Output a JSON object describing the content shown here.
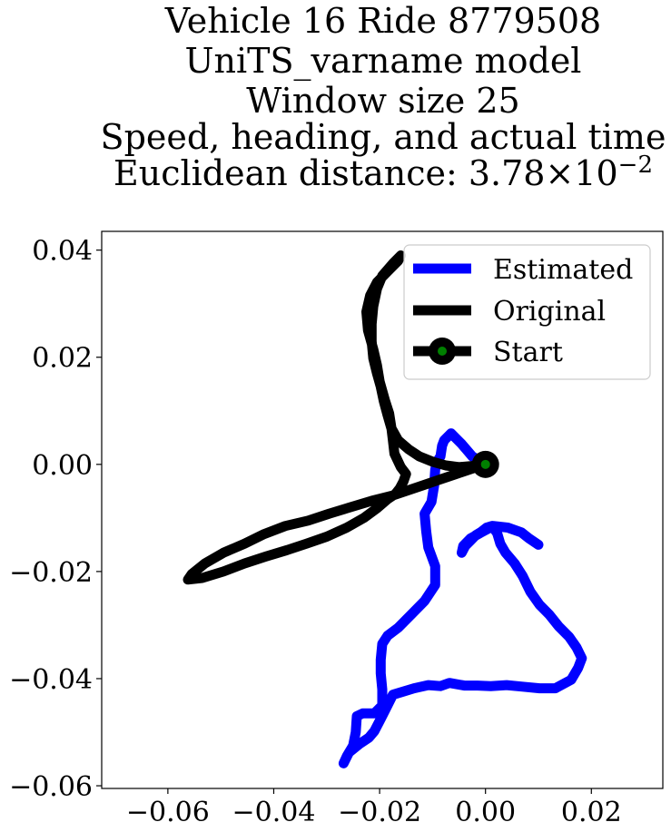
{
  "chart_data": {
    "type": "line",
    "title_lines": [
      "Vehicle 16 Ride 8779508",
      "UniTS_varname model",
      "Window size 25",
      "Speed, heading, and actual time"
    ],
    "title_distance_prefix": "Euclidean distance: ",
    "title_distance_mantissa": "3.78",
    "title_distance_times": "×",
    "title_distance_base": "10",
    "title_distance_exponent": "−2",
    "xlim": [
      -0.0725,
      0.0335
    ],
    "ylim": [
      -0.0605,
      0.0435
    ],
    "xticks": [
      -0.06,
      -0.04,
      -0.02,
      0.0,
      0.02
    ],
    "xtick_labels": [
      "−0.06",
      "−0.04",
      "−0.02",
      "0.00",
      "0.02"
    ],
    "yticks": [
      0.04,
      0.02,
      0.0,
      -0.02,
      -0.04,
      -0.06
    ],
    "ytick_labels": [
      "0.04",
      "0.02",
      "0.00",
      "−0.02",
      "−0.04",
      "−0.06"
    ],
    "legend_position": "upper-right",
    "series": [
      {
        "name": "Estimated",
        "color": "#0000ff",
        "points": [
          [
            0.0,
            0.0
          ],
          [
            -0.0025,
            0.0015
          ],
          [
            -0.0045,
            0.0038
          ],
          [
            -0.0065,
            0.0058
          ],
          [
            -0.0078,
            0.0045
          ],
          [
            -0.0082,
            0.0035
          ],
          [
            -0.0085,
            0.0015
          ],
          [
            -0.0092,
            0.0005
          ],
          [
            -0.0095,
            -0.001
          ],
          [
            -0.0097,
            -0.004
          ],
          [
            -0.0102,
            -0.007
          ],
          [
            -0.0115,
            -0.0092
          ],
          [
            -0.0112,
            -0.0125
          ],
          [
            -0.0108,
            -0.0155
          ],
          [
            -0.0095,
            -0.019
          ],
          [
            -0.0095,
            -0.0225
          ],
          [
            -0.0115,
            -0.0255
          ],
          [
            -0.014,
            -0.028
          ],
          [
            -0.0165,
            -0.0305
          ],
          [
            -0.0185,
            -0.032
          ],
          [
            -0.0195,
            -0.0335
          ],
          [
            -0.0198,
            -0.0365
          ],
          [
            -0.0198,
            -0.039
          ],
          [
            -0.0195,
            -0.042
          ],
          [
            -0.0195,
            -0.045
          ],
          [
            -0.021,
            -0.0465
          ],
          [
            -0.0232,
            -0.0465
          ],
          [
            -0.0243,
            -0.047
          ],
          [
            -0.0245,
            -0.05
          ],
          [
            -0.025,
            -0.0525
          ],
          [
            -0.0262,
            -0.0545
          ],
          [
            -0.0268,
            -0.0558
          ],
          [
            -0.0258,
            -0.0538
          ],
          [
            -0.0238,
            -0.0522
          ],
          [
            -0.022,
            -0.051
          ],
          [
            -0.021,
            -0.0498
          ],
          [
            -0.0198,
            -0.0475
          ],
          [
            -0.0185,
            -0.045
          ],
          [
            -0.0175,
            -0.043
          ],
          [
            -0.0158,
            -0.0425
          ],
          [
            -0.0135,
            -0.0418
          ],
          [
            -0.0108,
            -0.0412
          ],
          [
            -0.0085,
            -0.0414
          ],
          [
            -0.0068,
            -0.0408
          ],
          [
            -0.004,
            -0.0413
          ],
          [
            -0.0015,
            -0.0413
          ],
          [
            0.001,
            -0.0414
          ],
          [
            0.004,
            -0.0412
          ],
          [
            0.007,
            -0.0415
          ],
          [
            0.0102,
            -0.0418
          ],
          [
            0.0132,
            -0.0418
          ],
          [
            0.0162,
            -0.0402
          ],
          [
            0.0175,
            -0.038
          ],
          [
            0.0182,
            -0.0362
          ],
          [
            0.0172,
            -0.0342
          ],
          [
            0.0158,
            -0.0322
          ],
          [
            0.0138,
            -0.0302
          ],
          [
            0.012,
            -0.028
          ],
          [
            0.0102,
            -0.0262
          ],
          [
            0.0085,
            -0.0238
          ],
          [
            0.007,
            -0.0208
          ],
          [
            0.0055,
            -0.0185
          ],
          [
            0.0038,
            -0.0165
          ],
          [
            0.0028,
            -0.0148
          ],
          [
            0.0022,
            -0.0128
          ],
          [
            0.0012,
            -0.0115
          ],
          [
            0.0002,
            -0.0118
          ],
          [
            -0.0008,
            -0.0126
          ],
          [
            -0.0018,
            -0.0132
          ],
          [
            -0.0028,
            -0.0142
          ],
          [
            -0.0038,
            -0.0152
          ],
          [
            -0.0045,
            -0.0165
          ],
          [
            -0.0042,
            -0.0152
          ],
          [
            -0.0028,
            -0.0138
          ],
          [
            -0.001,
            -0.0128
          ],
          [
            0.0015,
            -0.0115
          ],
          [
            0.0042,
            -0.0118
          ],
          [
            0.0068,
            -0.0127
          ],
          [
            0.0082,
            -0.0138
          ],
          [
            0.01,
            -0.015
          ]
        ]
      },
      {
        "name": "Original",
        "color": "#000000",
        "points": [
          [
            0.0,
            0.0
          ],
          [
            -0.0025,
            -0.0008
          ],
          [
            -0.0055,
            -0.0018
          ],
          [
            -0.0085,
            -0.0028
          ],
          [
            -0.0115,
            -0.0038
          ],
          [
            -0.0145,
            -0.0048
          ],
          [
            -0.0175,
            -0.0058
          ],
          [
            -0.0215,
            -0.0068
          ],
          [
            -0.0255,
            -0.008
          ],
          [
            -0.0295,
            -0.0092
          ],
          [
            -0.0335,
            -0.0105
          ],
          [
            -0.0378,
            -0.0115
          ],
          [
            -0.0418,
            -0.013
          ],
          [
            -0.0455,
            -0.0148
          ],
          [
            -0.0495,
            -0.0165
          ],
          [
            -0.053,
            -0.0185
          ],
          [
            -0.0555,
            -0.0205
          ],
          [
            -0.0562,
            -0.0215
          ],
          [
            -0.0535,
            -0.0212
          ],
          [
            -0.0495,
            -0.02
          ],
          [
            -0.0455,
            -0.0185
          ],
          [
            -0.0415,
            -0.0172
          ],
          [
            -0.0375,
            -0.016
          ],
          [
            -0.0338,
            -0.0148
          ],
          [
            -0.03,
            -0.0135
          ],
          [
            -0.0262,
            -0.0118
          ],
          [
            -0.023,
            -0.01
          ],
          [
            -0.0205,
            -0.0082
          ],
          [
            -0.0185,
            -0.0065
          ],
          [
            -0.017,
            -0.0055
          ],
          [
            -0.0162,
            -0.0045
          ],
          [
            -0.0155,
            -0.0032
          ],
          [
            -0.015,
            -0.0018
          ],
          [
            -0.016,
            -0.0005
          ],
          [
            -0.0172,
            0.002
          ],
          [
            -0.0175,
            0.0045
          ],
          [
            -0.0178,
            0.007
          ],
          [
            -0.0182,
            0.0095
          ],
          [
            -0.019,
            0.012
          ],
          [
            -0.02,
            0.0155
          ],
          [
            -0.0205,
            0.0185
          ],
          [
            -0.0212,
            0.0215
          ],
          [
            -0.0222,
            0.025
          ],
          [
            -0.0225,
            0.0285
          ],
          [
            -0.0218,
            0.0315
          ],
          [
            -0.0205,
            0.034
          ],
          [
            -0.0185,
            0.036
          ],
          [
            -0.0165,
            0.038
          ],
          [
            -0.016,
            0.039
          ],
          [
            -0.0175,
            0.0375
          ],
          [
            -0.0195,
            0.0352
          ],
          [
            -0.0205,
            0.0328
          ],
          [
            -0.0212,
            0.0295
          ],
          [
            -0.0215,
            0.0262
          ],
          [
            -0.0215,
            0.023
          ],
          [
            -0.0212,
            0.0198
          ],
          [
            -0.0205,
            0.017
          ],
          [
            -0.0198,
            0.0145
          ],
          [
            -0.0192,
            0.0118
          ],
          [
            -0.0185,
            0.0092
          ],
          [
            -0.0178,
            0.0068
          ],
          [
            -0.0165,
            0.0045
          ],
          [
            -0.0145,
            0.0028
          ],
          [
            -0.0125,
            0.0015
          ],
          [
            -0.01,
            0.0005
          ],
          [
            -0.0075,
            -0.0002
          ],
          [
            -0.005,
            -0.0005
          ],
          [
            -0.0025,
            -0.0003
          ],
          [
            0.0,
            0.0
          ]
        ]
      }
    ],
    "start_marker": {
      "name": "Start",
      "x": 0.0,
      "y": 0.0,
      "outer_color": "#000000",
      "inner_color": "#008000"
    }
  }
}
